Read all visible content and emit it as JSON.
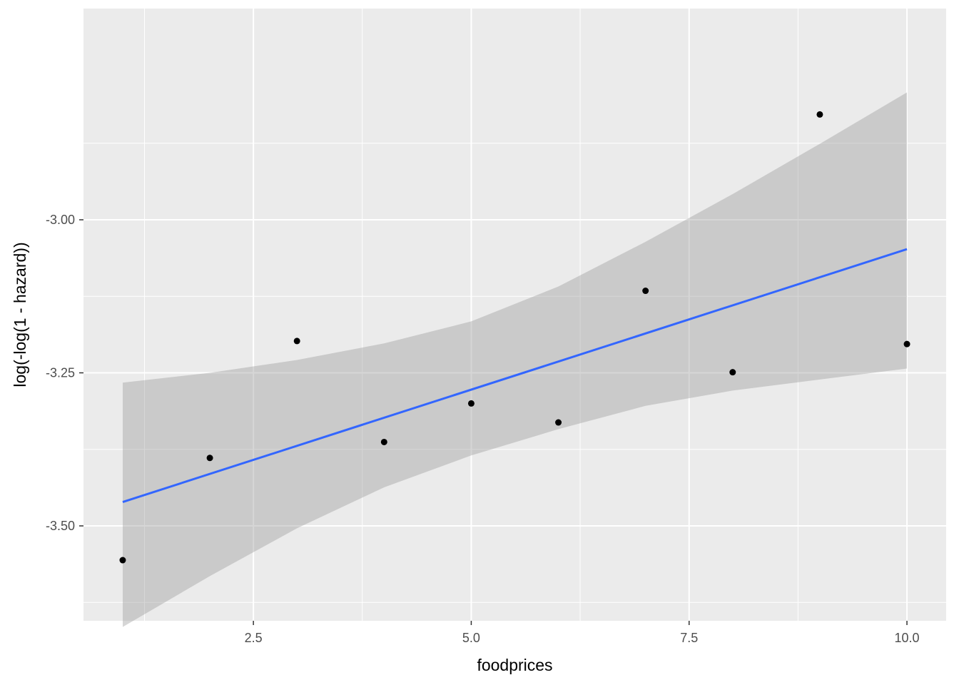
{
  "chart_data": {
    "type": "scatter",
    "title": "",
    "xlabel": "foodprices",
    "ylabel": "log(-log(1 - hazard))",
    "xlim": [
      0.55,
      10.45
    ],
    "ylim": [
      -3.655,
      -2.655
    ],
    "x_ticks": [
      2.5,
      5.0,
      7.5,
      10.0
    ],
    "x_tick_labels": [
      "2.5",
      "5.0",
      "7.5",
      "10.0"
    ],
    "y_ticks": [
      -3.5,
      -3.25,
      -3.0
    ],
    "y_tick_labels": [
      "-3.50",
      "-3.25",
      "-3.00"
    ],
    "grid": true,
    "points": [
      {
        "x": 1,
        "y": -3.556
      },
      {
        "x": 2,
        "y": -3.389
      },
      {
        "x": 3,
        "y": -3.198
      },
      {
        "x": 4,
        "y": -3.363
      },
      {
        "x": 5,
        "y": -3.3
      },
      {
        "x": 6,
        "y": -3.331
      },
      {
        "x": 7,
        "y": -3.116
      },
      {
        "x": 8,
        "y": -3.249
      },
      {
        "x": 9,
        "y": -2.828
      },
      {
        "x": 10,
        "y": -3.203
      }
    ],
    "fit_line": {
      "x": [
        1,
        10
      ],
      "y": [
        -3.461,
        -3.048
      ]
    },
    "confidence_band": {
      "x": [
        1,
        2,
        3,
        4,
        5,
        6,
        7,
        8,
        9,
        10
      ],
      "lower": [
        -3.665,
        -3.582,
        -3.504,
        -3.437,
        -3.385,
        -3.342,
        -3.304,
        -3.279,
        -3.261,
        -3.243
      ],
      "upper": [
        -3.266,
        -3.25,
        -3.229,
        -3.202,
        -3.166,
        -3.109,
        -3.036,
        -2.958,
        -2.876,
        -2.792
      ]
    },
    "colors": {
      "panel": "#ebebeb",
      "grid": "#ffffff",
      "point": "#000000",
      "line": "#3366ff",
      "band": "#999999"
    }
  }
}
